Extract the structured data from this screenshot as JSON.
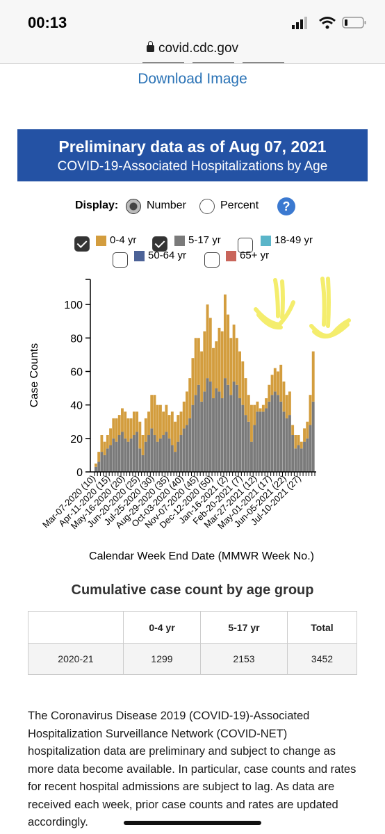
{
  "status": {
    "time": "00:13"
  },
  "browser": {
    "url": "covid.cdc.gov"
  },
  "download_label": "Download Image",
  "banner": {
    "title": "Preliminary data as of Aug 07, 2021",
    "subtitle": "COVID-19-Associated Hospitalizations by Age"
  },
  "display": {
    "label": "Display:",
    "options": [
      "Number",
      "Percent"
    ],
    "selected": "Number"
  },
  "legend": [
    {
      "label": "0-4 yr",
      "color": "#d39d3e",
      "checked": true
    },
    {
      "label": "5-17 yr",
      "color": "#7a7a7a",
      "checked": true
    },
    {
      "label": "18-49 yr",
      "color": "#5ab5c9",
      "checked": false
    },
    {
      "label": "50-64 yr",
      "color": "#4c6297",
      "checked": false
    },
    {
      "label": "65+ yr",
      "color": "#c9655b",
      "checked": false
    }
  ],
  "chart_data": {
    "type": "bar",
    "stacked": true,
    "ylabel": "Case Counts",
    "xlabel": "Calendar Week End Date (MMWR Week No.)",
    "ylim": [
      0,
      115
    ],
    "yticks": [
      0,
      20,
      40,
      60,
      80,
      100
    ],
    "xtick_labels": [
      "Mar-07-2020 (10)",
      "Apr-11-2020 (15)",
      "May-16-2020 (20)",
      "Jun-20-2020 (25)",
      "Jul-25-2020 (30)",
      "Aug-29-2020 (35)",
      "Oct-03-2020 (40)",
      "Nov-07-2020 (45)",
      "Dec-12-2020 (50)",
      "Jan-16-2021 (2)",
      "Feb-20-2021 (7)",
      "Mar-27-2021 (12)",
      "May-01-2021 (17)",
      "Jun-05-2021 (22)",
      "Jul-10-2021 (27)"
    ],
    "series": [
      {
        "name": "5-17 yr",
        "color": "#7a7a7a",
        "values": [
          3,
          6,
          12,
          10,
          14,
          16,
          20,
          18,
          22,
          24,
          20,
          18,
          20,
          22,
          24,
          14,
          10,
          18,
          22,
          26,
          22,
          18,
          20,
          22,
          24,
          20,
          16,
          12,
          18,
          22,
          26,
          28,
          32,
          40,
          46,
          52,
          42,
          48,
          56,
          54,
          44,
          50,
          48,
          44,
          56,
          52,
          46,
          54,
          52,
          44,
          40,
          34,
          30,
          18,
          28,
          36,
          36,
          36,
          38,
          42,
          46,
          48,
          46,
          42,
          36,
          32,
          34,
          22,
          14,
          16,
          14,
          18,
          20,
          28,
          42
        ]
      },
      {
        "name": "0-4 yr",
        "color": "#d39d3e",
        "values": [
          2,
          6,
          10,
          8,
          8,
          10,
          12,
          14,
          12,
          14,
          16,
          14,
          12,
          14,
          12,
          16,
          12,
          14,
          14,
          20,
          24,
          22,
          20,
          14,
          16,
          14,
          20,
          18,
          16,
          14,
          16,
          20,
          24,
          28,
          34,
          28,
          30,
          36,
          44,
          38,
          30,
          28,
          38,
          40,
          50,
          42,
          34,
          34,
          28,
          28,
          26,
          22,
          16,
          22,
          12,
          6,
          2,
          4,
          6,
          10,
          12,
          14,
          14,
          22,
          18,
          14,
          14,
          6,
          8,
          6,
          4,
          8,
          10,
          18,
          30
        ]
      }
    ]
  },
  "table": {
    "title": "Cumulative case count by age group",
    "headers": [
      "",
      "0-4 yr",
      "5-17 yr",
      "Total"
    ],
    "rows": [
      [
        "2020-21",
        "1299",
        "2153",
        "3452"
      ]
    ]
  },
  "paragraph": "The Coronavirus Disease 2019 (COVID-19)-Associated Hospitalization Surveillance Network (COVID-NET) hospitalization data are preliminary and subject to change as more data become available. In particular, case counts and rates for recent hospital admissions are subject to lag. As data are received each week, prior case counts and rates are updated accordingly.",
  "annotation_color": "#f3ec5e"
}
